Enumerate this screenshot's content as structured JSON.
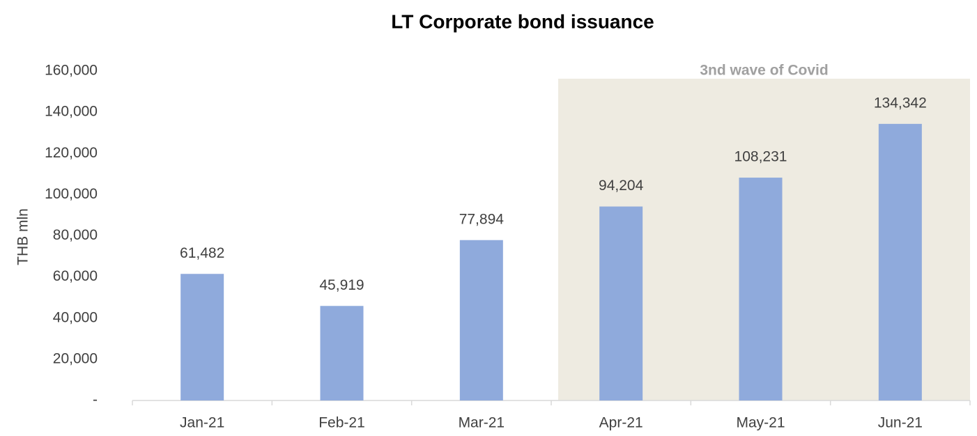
{
  "chart_data": {
    "type": "bar",
    "title": "LT Corporate bond issuance",
    "y_label": "THB mln",
    "categories": [
      "Jan-21",
      "Feb-21",
      "Mar-21",
      "Apr-21",
      "May-21",
      "Jun-21"
    ],
    "values": [
      61482,
      45919,
      77894,
      94204,
      108231,
      134342
    ],
    "value_labels": [
      "61,482",
      "45,919",
      "77,894",
      "94,204",
      "108,231",
      "134,342"
    ],
    "color": "#8faadc",
    "ylim": [
      0,
      160000
    ],
    "yticks": [
      {
        "value": 0,
        "label": "-"
      },
      {
        "value": 20000,
        "label": "20,000"
      },
      {
        "value": 40000,
        "label": "40,000"
      },
      {
        "value": 60000,
        "label": "60,000"
      },
      {
        "value": 80000,
        "label": "80,000"
      },
      {
        "value": 100000,
        "label": "100,000"
      },
      {
        "value": 120000,
        "label": "120,000"
      },
      {
        "value": 140000,
        "label": "140,000"
      },
      {
        "value": 160000,
        "label": "160,000"
      }
    ],
    "grid": false,
    "annotation": {
      "text": "3nd wave of Covid",
      "from": "Apr-21",
      "to": "Jun-21"
    }
  }
}
